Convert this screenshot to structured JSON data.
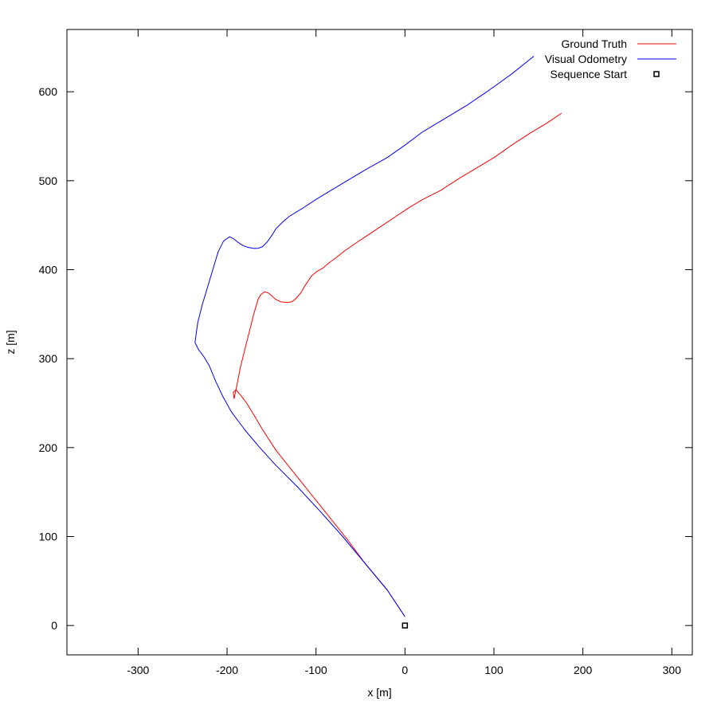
{
  "chart_data": {
    "type": "line",
    "title": "",
    "xlabel": "x [m]",
    "ylabel": "z [m]",
    "xlim": [
      -380,
      323
    ],
    "ylim": [
      -33,
      670
    ],
    "x_ticks": [
      -300,
      -200,
      -100,
      0,
      100,
      200,
      300
    ],
    "x_tick_labels": [
      "-300",
      "-200",
      "-100",
      "0",
      "100",
      "200",
      "300"
    ],
    "y_ticks": [
      0,
      100,
      200,
      300,
      400,
      500,
      600
    ],
    "y_tick_labels": [
      "0",
      "100",
      "200",
      "300",
      "400",
      "500",
      "600"
    ],
    "grid": false,
    "legend_position": "top-right",
    "series": [
      {
        "name": "Ground Truth",
        "color": "#ff0000",
        "style": "line",
        "x": [
          0,
          -20,
          -45,
          -65,
          -85,
          -105,
          -125,
          -145,
          -160,
          -170,
          -178,
          -184,
          -190,
          -193,
          -192,
          -189,
          -185,
          -180,
          -175,
          -170,
          -165,
          -162,
          -158,
          -154,
          -150,
          -146,
          -140,
          -133,
          -127,
          -122,
          -117,
          -113,
          -109,
          -105,
          -99,
          -92,
          -85,
          -78,
          -68,
          -55,
          -40,
          -25,
          -10,
          5,
          20,
          40,
          60,
          80,
          100,
          120,
          140,
          160,
          176
        ],
        "y": [
          10,
          40,
          70,
          97,
          122,
          147,
          172,
          197,
          220,
          237,
          250,
          258,
          265,
          262,
          255,
          270,
          290,
          310,
          330,
          350,
          367,
          372,
          375,
          374,
          371,
          367,
          364,
          363,
          364,
          368,
          374,
          381,
          387,
          393,
          398,
          402,
          408,
          413,
          421,
          430,
          440,
          450,
          460,
          470,
          479,
          489,
          502,
          514,
          526,
          540,
          553,
          565,
          576
        ]
      },
      {
        "name": "Visual Odometry",
        "color": "#0000ff",
        "style": "line",
        "x": [
          0,
          -20,
          -45,
          -70,
          -95,
          -120,
          -145,
          -165,
          -180,
          -195,
          -205,
          -213,
          -220,
          -226,
          -232,
          -236,
          -233,
          -228,
          -222,
          -216,
          -210,
          -204,
          -200,
          -197,
          -193,
          -188,
          -182,
          -176,
          -170,
          -165,
          -160,
          -155,
          -150,
          -145,
          -138,
          -130,
          -115,
          -100,
          -85,
          -65,
          -45,
          -20,
          0,
          20,
          45,
          70,
          95,
          120,
          145
        ],
        "y": [
          10,
          40,
          70,
          100,
          128,
          155,
          180,
          202,
          220,
          240,
          258,
          275,
          292,
          302,
          310,
          318,
          340,
          360,
          380,
          400,
          420,
          432,
          435,
          437,
          435,
          431,
          427,
          425,
          424,
          424,
          426,
          431,
          438,
          446,
          453,
          460,
          469,
          479,
          488,
          500,
          512,
          526,
          540,
          555,
          570,
          585,
          602,
          620,
          640
        ]
      },
      {
        "name": "Sequence Start",
        "color": "#000000",
        "style": "marker-square",
        "x": [
          0
        ],
        "y": [
          0
        ]
      }
    ]
  }
}
